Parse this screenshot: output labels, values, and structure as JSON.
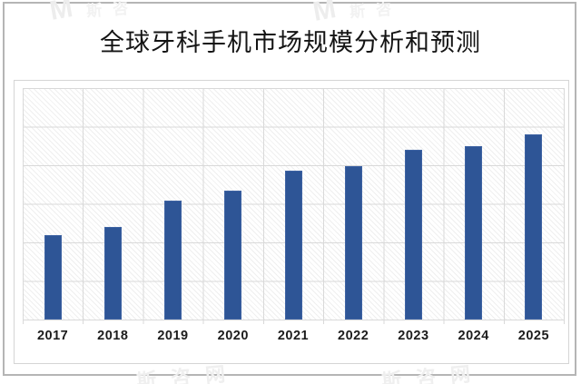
{
  "chart_data": {
    "type": "bar",
    "title": "全球牙科手机市场规模分析和预测",
    "categories": [
      "2017",
      "2018",
      "2019",
      "2020",
      "2021",
      "2022",
      "2023",
      "2024",
      "2025"
    ],
    "values": [
      2.18,
      2.39,
      3.09,
      3.35,
      3.86,
      3.98,
      4.4,
      4.49,
      4.79
    ],
    "ylim": [
      0,
      6
    ],
    "xlabel": "",
    "ylabel": "",
    "y_axis_labels_visible": false,
    "grid": true,
    "legend": false,
    "bar_color": "#2E5596",
    "bar_border_color": "#3E63A3",
    "gridline_color": "#d9d9d9",
    "plot_background": "white with fine diagonal hatch",
    "value_note": "y-axis has no visible tick labels; values estimated in gridline units (1 unit = one horizontal gridline interval, 6 intervals total)"
  },
  "watermarks": {
    "top_left_logo": "M",
    "top_left_text": "斯咨",
    "top_right_logo": "M",
    "top_right_text": "斯咨",
    "bottom_left_text": "斯咨网",
    "bottom_right_text": "斯咨网"
  }
}
